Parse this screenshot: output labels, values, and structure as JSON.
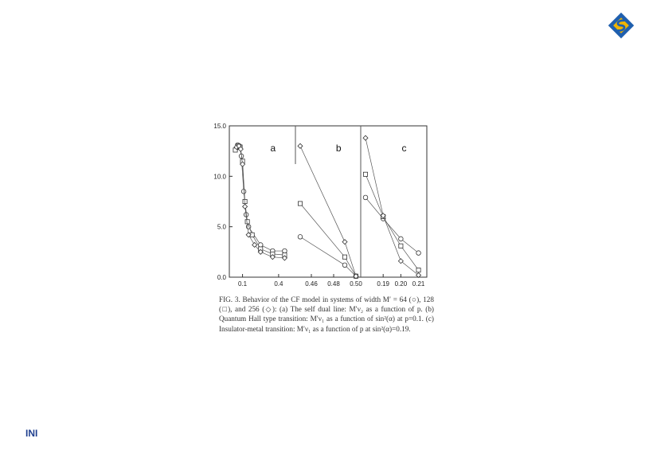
{
  "footer": {
    "label": "INI"
  },
  "logo": {
    "icon": "institute-logo-icon",
    "colors": [
      "#1f5fae",
      "#f0b400"
    ]
  },
  "figure": {
    "caption": "FIG. 3. Behavior of the CF model in systems of width M′ = 64 (○), 128 (□), and 256 (◇): (a) The self dual line: M′ν₂ as a function of p. (b) Quantum Hall type transition: M′ν₁ as a function of sin²(α) at p=0.1. (c) Insulator-metal transition: M′ν₁ as a function of p at sin²(α)=0.19."
  },
  "chart_data": [
    {
      "type": "line",
      "panel_label": "a",
      "ylim": [
        0,
        15
      ],
      "yticks": [
        "0.0",
        "5.0",
        "10.0",
        "15.0"
      ],
      "xticks": [
        "0.1",
        "0.4"
      ],
      "tick_values": [
        0.1,
        0.4
      ],
      "xlim": [
        0.03,
        0.5
      ],
      "series": [
        {
          "marker": "circle",
          "x": [
            0.05,
            0.06,
            0.075,
            0.09,
            0.11,
            0.13,
            0.15,
            0.25,
            0.35,
            0.45
          ],
          "y": [
            12.8,
            13.1,
            13.0,
            12.0,
            8.5,
            6.2,
            5.0,
            3.2,
            2.6,
            2.6
          ]
        },
        {
          "marker": "square",
          "x": [
            0.04,
            0.06,
            0.08,
            0.1,
            0.12,
            0.14,
            0.18,
            0.25,
            0.35,
            0.45
          ],
          "y": [
            12.6,
            13.0,
            12.9,
            11.5,
            7.5,
            5.5,
            4.2,
            2.8,
            2.3,
            2.2
          ]
        },
        {
          "marker": "diamond",
          "x": [
            0.05,
            0.07,
            0.085,
            0.1,
            0.12,
            0.15,
            0.2,
            0.25,
            0.35,
            0.45
          ],
          "y": [
            12.9,
            13.0,
            12.7,
            11.2,
            7.0,
            4.2,
            3.2,
            2.5,
            2.0,
            1.9
          ]
        }
      ]
    },
    {
      "type": "line",
      "panel_label": "b",
      "xticks": [
        "0.46",
        "0.48",
        "0.50"
      ],
      "xlim": [
        0.45,
        0.5
      ],
      "series": [
        {
          "marker": "circle",
          "x": [
            0.45,
            0.49,
            0.5
          ],
          "y": [
            4.0,
            1.2,
            0.1
          ]
        },
        {
          "marker": "square",
          "x": [
            0.45,
            0.49,
            0.5
          ],
          "y": [
            7.3,
            2.0,
            0.1
          ]
        },
        {
          "marker": "diamond",
          "x": [
            0.45,
            0.49,
            0.5
          ],
          "y": [
            13.0,
            3.5,
            0.1
          ]
        }
      ]
    },
    {
      "type": "line",
      "panel_label": "c",
      "xticks": [
        "0.19",
        "0.20",
        "0.21"
      ],
      "xlim": [
        0.18,
        0.212
      ],
      "series": [
        {
          "marker": "circle",
          "x": [
            0.18,
            0.19,
            0.2,
            0.21
          ],
          "y": [
            7.9,
            5.8,
            3.8,
            2.4
          ]
        },
        {
          "marker": "square",
          "x": [
            0.18,
            0.19,
            0.2,
            0.21
          ],
          "y": [
            10.2,
            6.0,
            3.1,
            0.7
          ]
        },
        {
          "marker": "diamond",
          "x": [
            0.18,
            0.19,
            0.2,
            0.21
          ],
          "y": [
            13.8,
            6.1,
            1.6,
            0.2
          ]
        }
      ]
    }
  ]
}
